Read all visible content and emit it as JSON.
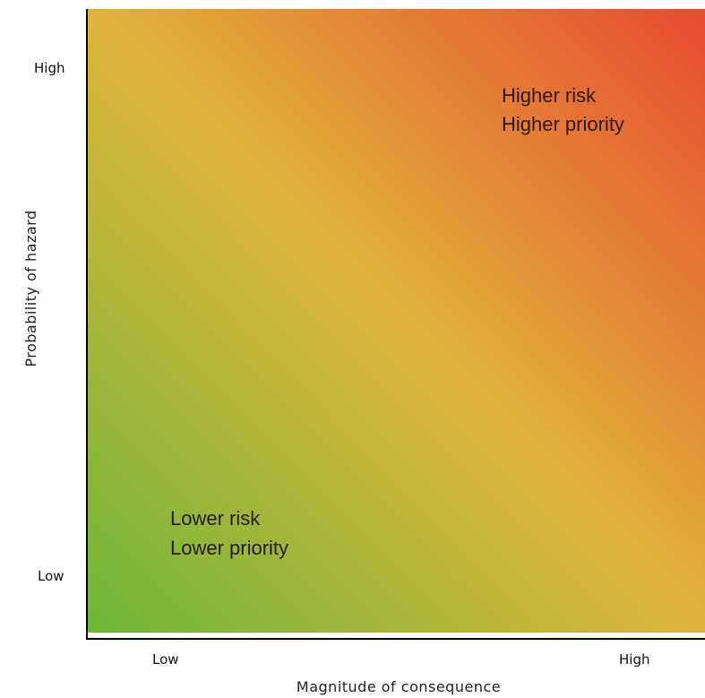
{
  "chart_data": {
    "type": "heatmap",
    "title": "",
    "xlabel": "Magnitude of consequence",
    "ylabel": "Probability of hazard",
    "x_ticks": [
      "Low",
      "High"
    ],
    "y_ticks": [
      "Low",
      "High"
    ],
    "gradient": {
      "low_low_color": "#6cb83a",
      "mid_color": "#e0b43a",
      "high_high_color": "#e84a32",
      "direction": "bottom-left to top-right"
    },
    "annotations": [
      {
        "region": "top-right",
        "lines": [
          "Higher risk",
          "Higher priority"
        ]
      },
      {
        "region": "bottom-left",
        "lines": [
          "Lower risk",
          "Lower priority"
        ]
      }
    ],
    "grid": false,
    "legend": "none"
  }
}
